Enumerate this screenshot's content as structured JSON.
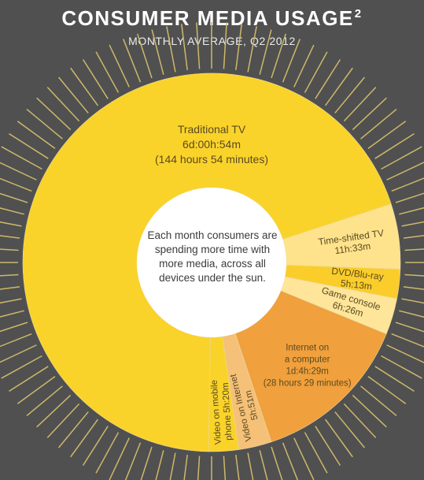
{
  "header": {
    "title": "CONSUMER MEDIA USAGE",
    "footnote": "2",
    "subtitle": "MONTHLY AVERAGE, Q2 2012"
  },
  "center_message": "Each month consumers are spending more time with more media, across all devices under the sun.",
  "colors": {
    "background": "#505050",
    "rays": "#cdb86a",
    "center": "#ffffff"
  },
  "chart_data": {
    "type": "pie",
    "title": "CONSUMER MEDIA USAGE",
    "subtitle": "MONTHLY AVERAGE, Q2 2012",
    "unit": "minutes per month",
    "segments": [
      {
        "name": "Traditional TV",
        "value": 8694,
        "label_lines": [
          "Traditional TV",
          "6d:00h:54m",
          "(144 hours 54 minutes)"
        ],
        "color": "#fad32a"
      },
      {
        "name": "Time-shifted TV",
        "value": 693,
        "label_lines": [
          "Time-shifted TV",
          "11h:33m"
        ],
        "color": "#fee38c"
      },
      {
        "name": "DVD/Blu-ray",
        "value": 313,
        "label_lines": [
          "DVD/Blu-ray",
          "5h:13m"
        ],
        "color": "#fbcd2b"
      },
      {
        "name": "Game console",
        "value": 386,
        "label_lines": [
          "Game console",
          "6h:26m"
        ],
        "color": "#fee59a"
      },
      {
        "name": "Internet on a computer",
        "value": 1709,
        "label_lines": [
          "Internet on",
          "a computer",
          "1d:4h:29m",
          "(28 hours 29 minutes)"
        ],
        "color": "#f0a03c"
      },
      {
        "name": "Video on Internet",
        "value": 351,
        "label_lines": [
          "Video on Internet",
          "5h:51m"
        ],
        "color": "#f5c078"
      },
      {
        "name": "Video on mobile phone",
        "value": 320,
        "label_lines": [
          "Video on mobile",
          "phone 5h:20m"
        ],
        "color": "#fad32a"
      }
    ]
  }
}
